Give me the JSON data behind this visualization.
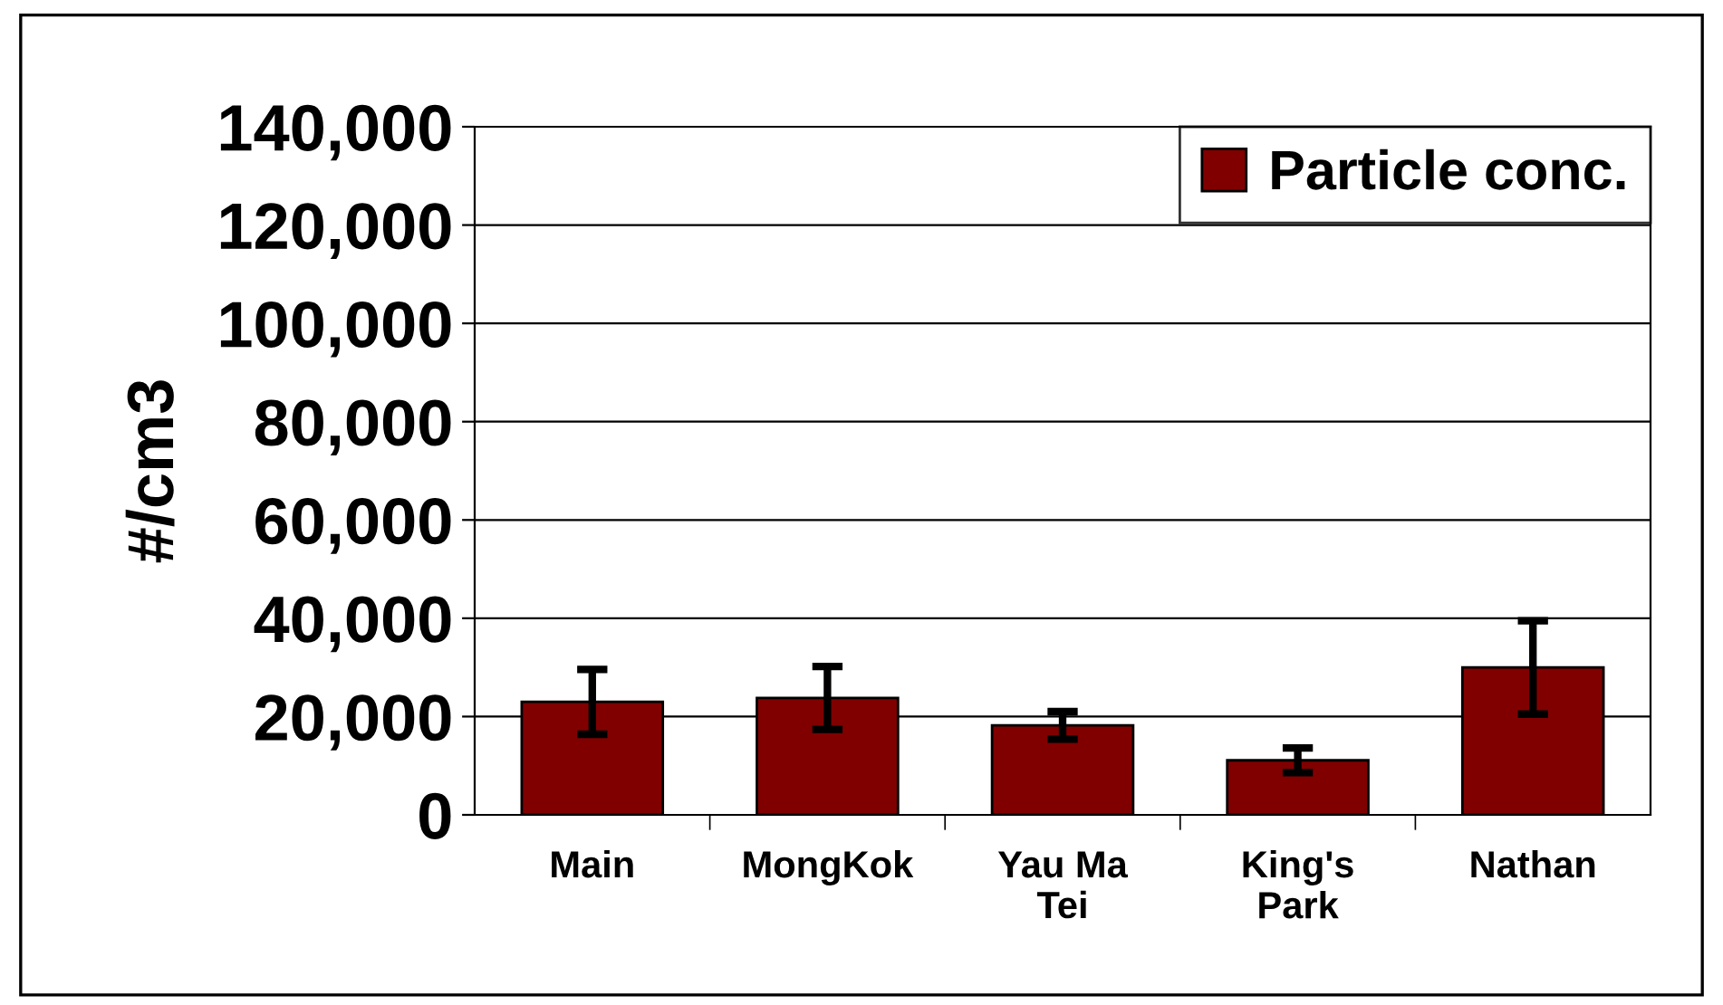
{
  "chart_data": {
    "type": "bar",
    "ylabel": "#/cm3",
    "categories": [
      "Main",
      "MongKok",
      "Yau Ma\nTei",
      "King's\nPark",
      "Nathan"
    ],
    "series": [
      {
        "name": "Particle conc.",
        "color": "#800000",
        "values": [
          23000,
          23800,
          18200,
          11100,
          30000
        ],
        "errors": [
          6600,
          6400,
          2800,
          2500,
          9500
        ]
      }
    ],
    "ylim": [
      0,
      140000
    ],
    "yticks": [
      {
        "value": 0,
        "label": "0"
      },
      {
        "value": 20000,
        "label": "20,000"
      },
      {
        "value": 40000,
        "label": "40,000"
      },
      {
        "value": 60000,
        "label": "60,000"
      },
      {
        "value": 80000,
        "label": "80,000"
      },
      {
        "value": 100000,
        "label": "100,000"
      },
      {
        "value": 120000,
        "label": "120,000"
      },
      {
        "value": 140000,
        "label": "140,000"
      }
    ],
    "grid": "y",
    "legend": "top right"
  }
}
